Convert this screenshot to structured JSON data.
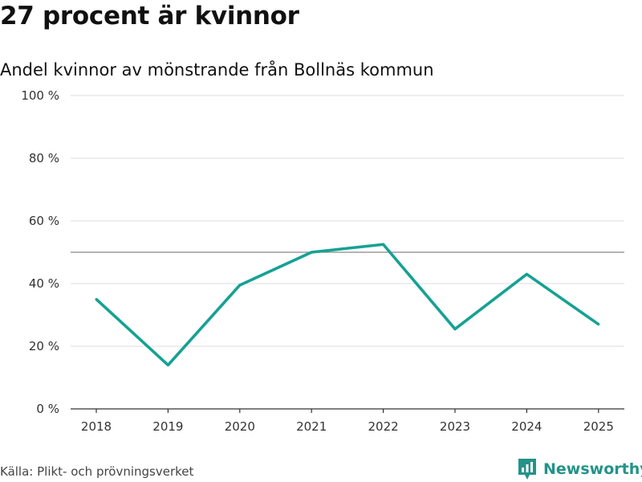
{
  "header": {
    "title": "27 procent är kvinnor",
    "subtitle": "Andel kvinnor av mönstrande från Bollnäs kommun"
  },
  "footer": {
    "source": "Källa: Plikt- och prövningsverket",
    "brand": "Newsworthy",
    "brand_icon": "newsworthy-logo-icon"
  },
  "colors": {
    "line": "#16a194",
    "grid": "#dddddd",
    "reference": "#888888",
    "axis": "#333333",
    "brand": "#239389"
  },
  "chart_data": {
    "type": "line",
    "title": "27 procent är kvinnor",
    "subtitle": "Andel kvinnor av mönstrande från Bollnäs kommun",
    "xlabel": "",
    "ylabel": "",
    "categories": [
      "2018",
      "2019",
      "2020",
      "2021",
      "2022",
      "2023",
      "2024",
      "2025"
    ],
    "series": [
      {
        "name": "Andel kvinnor",
        "values": [
          35,
          14,
          39.5,
          50,
          52.5,
          25.5,
          43,
          27
        ]
      }
    ],
    "ylim": [
      0,
      100
    ],
    "yticks": [
      0,
      20,
      40,
      60,
      80,
      100
    ],
    "ytick_labels": [
      "0 %",
      "20 %",
      "40 %",
      "60 %",
      "80 %",
      "100 %"
    ],
    "reference_line": 50,
    "grid": true,
    "legend": "none"
  }
}
